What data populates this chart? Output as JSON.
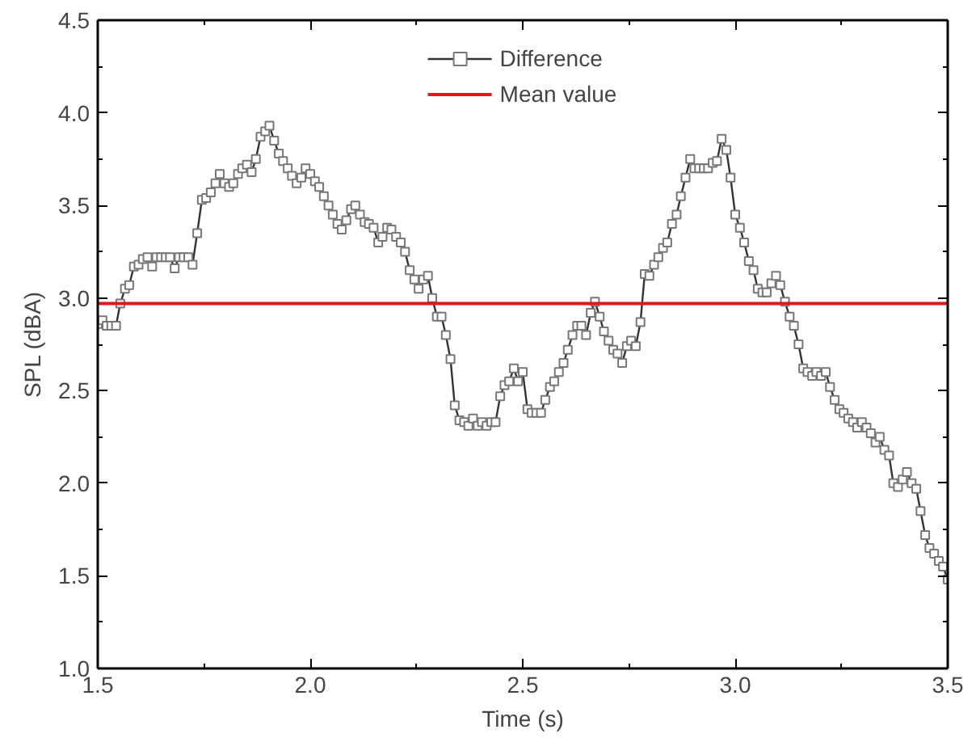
{
  "chart_data": {
    "type": "line",
    "xlabel": "Time (s)",
    "ylabel": "SPL (dBA)",
    "xlim": [
      1.5,
      3.5
    ],
    "ylim": [
      1.0,
      4.5
    ],
    "xticks": [
      1.5,
      {
        "value": 2,
        "label": "2.0"
      },
      2.5,
      {
        "value": 3,
        "label": "3.0"
      },
      3.5
    ],
    "yticks": [
      {
        "value": 1,
        "label": "1.0"
      },
      1.5,
      {
        "value": 2,
        "label": "2.0"
      },
      2.5,
      {
        "value": 3,
        "label": "3.0"
      },
      3.5,
      {
        "value": 4,
        "label": "4.0"
      },
      4.5
    ],
    "grid": false,
    "legend": "top",
    "marker": "square",
    "line_style": "solid",
    "x": [
      1.5,
      1.511,
      1.521,
      1.532,
      1.543,
      1.553,
      1.564,
      1.574,
      1.585,
      1.596,
      1.606,
      1.617,
      1.628,
      1.638,
      1.649,
      1.66,
      1.67,
      1.681,
      1.691,
      1.702,
      1.713,
      1.723,
      1.734,
      1.745,
      1.755,
      1.766,
      1.777,
      1.787,
      1.798,
      1.809,
      1.819,
      1.83,
      1.84,
      1.851,
      1.862,
      1.872,
      1.883,
      1.894,
      1.904,
      1.915,
      1.926,
      1.936,
      1.947,
      1.957,
      1.968,
      1.979,
      1.989,
      2.0,
      2.011,
      2.021,
      2.032,
      2.043,
      2.053,
      2.064,
      2.074,
      2.085,
      2.096,
      2.106,
      2.117,
      2.128,
      2.138,
      2.149,
      2.16,
      2.17,
      2.181,
      2.191,
      2.202,
      2.213,
      2.223,
      2.234,
      2.245,
      2.255,
      2.266,
      2.277,
      2.287,
      2.298,
      2.309,
      2.319,
      2.33,
      2.34,
      2.351,
      2.362,
      2.372,
      2.383,
      2.394,
      2.404,
      2.415,
      2.426,
      2.436,
      2.447,
      2.457,
      2.468,
      2.479,
      2.489,
      2.5,
      2.511,
      2.521,
      2.532,
      2.543,
      2.553,
      2.564,
      2.574,
      2.585,
      2.596,
      2.606,
      2.617,
      2.628,
      2.638,
      2.649,
      2.66,
      2.67,
      2.681,
      2.691,
      2.702,
      2.713,
      2.723,
      2.734,
      2.745,
      2.755,
      2.766,
      2.777,
      2.787,
      2.798,
      2.809,
      2.819,
      2.83,
      2.84,
      2.851,
      2.862,
      2.872,
      2.883,
      2.894,
      2.904,
      2.915,
      2.926,
      2.936,
      2.947,
      2.957,
      2.968,
      2.979,
      2.989,
      3.0,
      3.011,
      3.021,
      3.032,
      3.043,
      3.053,
      3.064,
      3.074,
      3.085,
      3.096,
      3.106,
      3.117,
      3.128,
      3.138,
      3.149,
      3.16,
      3.17,
      3.181,
      3.191,
      3.202,
      3.213,
      3.223,
      3.234,
      3.245,
      3.255,
      3.266,
      3.277,
      3.287,
      3.298,
      3.309,
      3.319,
      3.33,
      3.34,
      3.351,
      3.362,
      3.372,
      3.383,
      3.394,
      3.404,
      3.415,
      3.426,
      3.436,
      3.447,
      3.457,
      3.468,
      3.479,
      3.489,
      3.5
    ],
    "series": [
      {
        "name": "Difference",
        "color": "#333333",
        "values": [
          2.86,
          2.88,
          2.85,
          2.85,
          2.85,
          2.97,
          3.05,
          3.07,
          3.17,
          3.18,
          3.21,
          3.22,
          3.17,
          3.22,
          3.22,
          3.22,
          3.22,
          3.16,
          3.22,
          3.22,
          3.22,
          3.18,
          3.35,
          3.53,
          3.54,
          3.57,
          3.62,
          3.67,
          3.62,
          3.6,
          3.62,
          3.67,
          3.7,
          3.72,
          3.68,
          3.75,
          3.87,
          3.9,
          3.93,
          3.85,
          3.78,
          3.74,
          3.7,
          3.66,
          3.62,
          3.65,
          3.7,
          3.67,
          3.63,
          3.6,
          3.55,
          3.5,
          3.45,
          3.4,
          3.37,
          3.42,
          3.48,
          3.5,
          3.45,
          3.41,
          3.4,
          3.38,
          3.3,
          3.33,
          3.38,
          3.37,
          3.33,
          3.3,
          3.25,
          3.15,
          3.1,
          3.05,
          3.1,
          3.12,
          3.0,
          2.9,
          2.9,
          2.8,
          2.67,
          2.42,
          2.34,
          2.33,
          2.31,
          2.35,
          2.31,
          2.33,
          2.31,
          2.33,
          2.33,
          2.47,
          2.53,
          2.55,
          2.62,
          2.55,
          2.6,
          2.4,
          2.38,
          2.38,
          2.38,
          2.45,
          2.52,
          2.55,
          2.6,
          2.65,
          2.72,
          2.8,
          2.85,
          2.85,
          2.8,
          2.92,
          2.98,
          2.9,
          2.82,
          2.77,
          2.72,
          2.7,
          2.65,
          2.74,
          2.77,
          2.74,
          2.87,
          3.13,
          3.12,
          3.18,
          3.22,
          3.27,
          3.3,
          3.4,
          3.45,
          3.55,
          3.65,
          3.75,
          3.7,
          3.7,
          3.7,
          3.7,
          3.73,
          3.74,
          3.86,
          3.8,
          3.65,
          3.45,
          3.38,
          3.3,
          3.2,
          3.15,
          3.05,
          3.03,
          3.03,
          3.08,
          3.12,
          3.07,
          2.98,
          2.9,
          2.85,
          2.75,
          2.62,
          2.6,
          2.58,
          2.6,
          2.58,
          2.6,
          2.52,
          2.45,
          2.4,
          2.38,
          2.35,
          2.33,
          2.3,
          2.33,
          2.3,
          2.27,
          2.22,
          2.25,
          2.18,
          2.15,
          2.0,
          1.98,
          2.02,
          2.06,
          2.0,
          1.97,
          1.85,
          1.72,
          1.65,
          1.62,
          1.58,
          1.55,
          1.48
        ]
      }
    ],
    "ref_lines": [
      {
        "axis": "y",
        "value": 2.97,
        "label": "Mean value",
        "color": "#e8141c",
        "line_style": "solid"
      }
    ]
  }
}
